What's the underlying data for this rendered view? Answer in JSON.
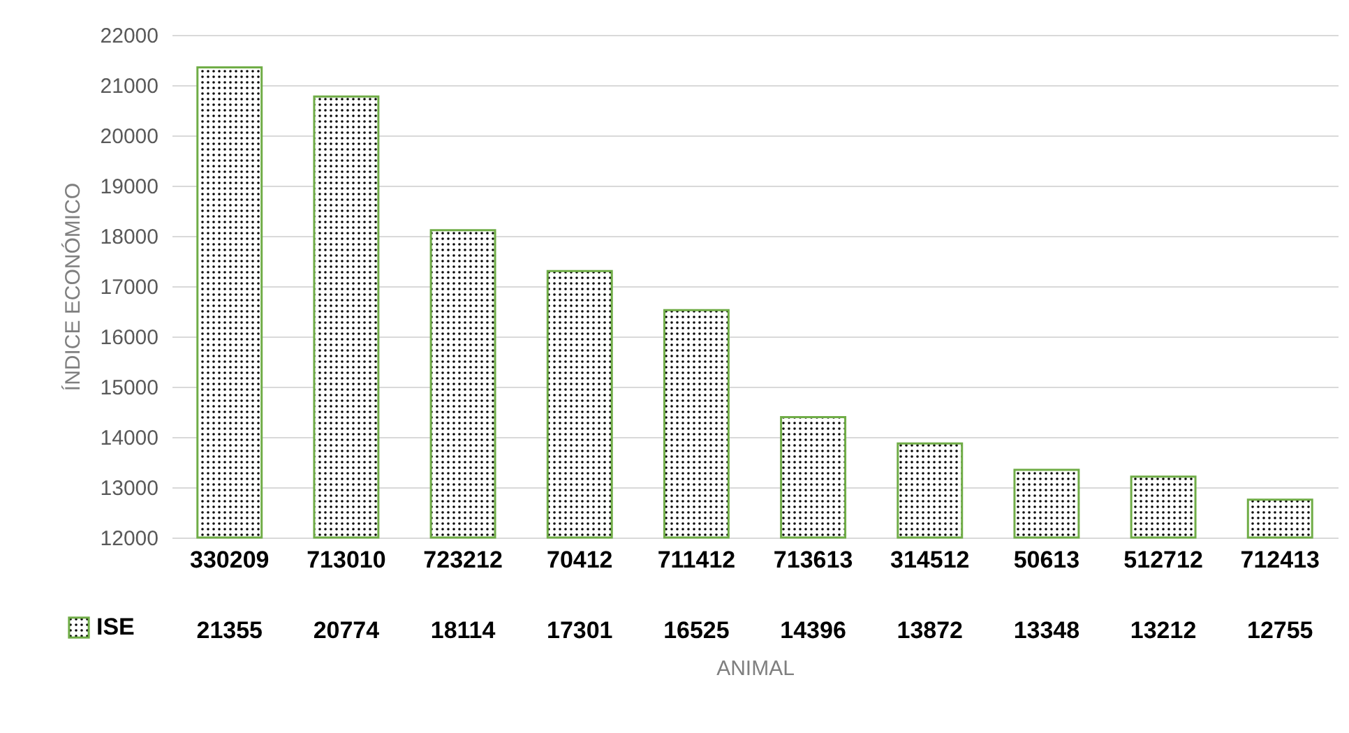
{
  "chart_data": {
    "type": "bar",
    "categories": [
      "330209",
      "713010",
      "723212",
      "70412",
      "711412",
      "713613",
      "314512",
      "50613",
      "512712",
      "712413"
    ],
    "series": [
      {
        "name": "ISE",
        "color": "#70ad47",
        "values": [
          21355,
          20774,
          18114,
          17301,
          16525,
          14396,
          13872,
          13348,
          13212,
          12755
        ]
      }
    ],
    "xlabel": "ANIMAL",
    "ylabel": "ÍNDICE ECONÓMICO",
    "ylim": [
      12000,
      22000
    ],
    "yticks": [
      12000,
      13000,
      14000,
      15000,
      16000,
      17000,
      18000,
      19000,
      20000,
      21000,
      22000
    ],
    "grid": "y",
    "legend": "bottom left",
    "data_labels": true
  }
}
